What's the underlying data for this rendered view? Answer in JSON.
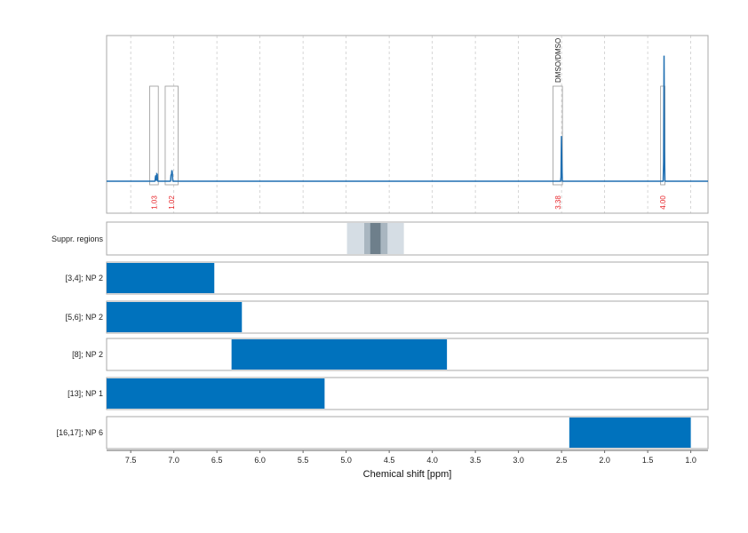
{
  "chart_data": {
    "type": "nmr-spectrum",
    "xlabel": "Chemical shift [ppm]",
    "xlim": [
      7.78,
      0.8
    ],
    "x_reversed": true,
    "ticks": [
      7.5,
      7.0,
      6.5,
      6.0,
      5.5,
      5.0,
      4.5,
      4.0,
      3.5,
      3.0,
      2.5,
      2.0,
      1.5,
      1.0
    ],
    "grid": "vertical dashed",
    "line_color": "#1f6fb2",
    "bar_color": "#0072bd",
    "spectrum_peaks": [
      {
        "ppm": 7.21,
        "height": 0.06
      },
      {
        "ppm": 7.195,
        "height": 0.08
      },
      {
        "ppm": 7.03,
        "height": 0.07
      },
      {
        "ppm": 7.02,
        "height": 0.11
      },
      {
        "ppm": 2.5,
        "height": 0.37
      },
      {
        "ppm": 1.31,
        "height": 0.95
      }
    ],
    "integrals": [
      {
        "range": [
          7.28,
          7.18
        ],
        "value": "1.03"
      },
      {
        "range": [
          7.1,
          6.95
        ],
        "value": "1.02"
      },
      {
        "range": [
          2.6,
          2.49
        ],
        "value": "3.38",
        "annotation": "DMSO/DMSO"
      },
      {
        "range": [
          1.35,
          1.3
        ],
        "value": "4.00"
      }
    ],
    "suppressed_regions": {
      "label": "Suppr. regions",
      "bands": [
        {
          "range": [
            4.99,
            4.33
          ],
          "color": "#d5dde4"
        },
        {
          "range": [
            4.79,
            4.52
          ],
          "color": "#a9b6c0"
        },
        {
          "range": [
            4.72,
            4.6
          ],
          "color": "#6e7f8b"
        }
      ]
    },
    "rows": [
      {
        "label": "[3,4]; NP 2",
        "range": [
          7.78,
          6.53
        ]
      },
      {
        "label": "[5,6]; NP 2",
        "range": [
          7.78,
          6.21
        ]
      },
      {
        "label": "[8]; NP 2",
        "range": [
          6.33,
          3.83
        ]
      },
      {
        "label": "[13]; NP 1",
        "range": [
          7.78,
          5.25
        ]
      },
      {
        "label": "[16,17]; NP 6",
        "range": [
          2.41,
          1.0
        ]
      }
    ]
  }
}
